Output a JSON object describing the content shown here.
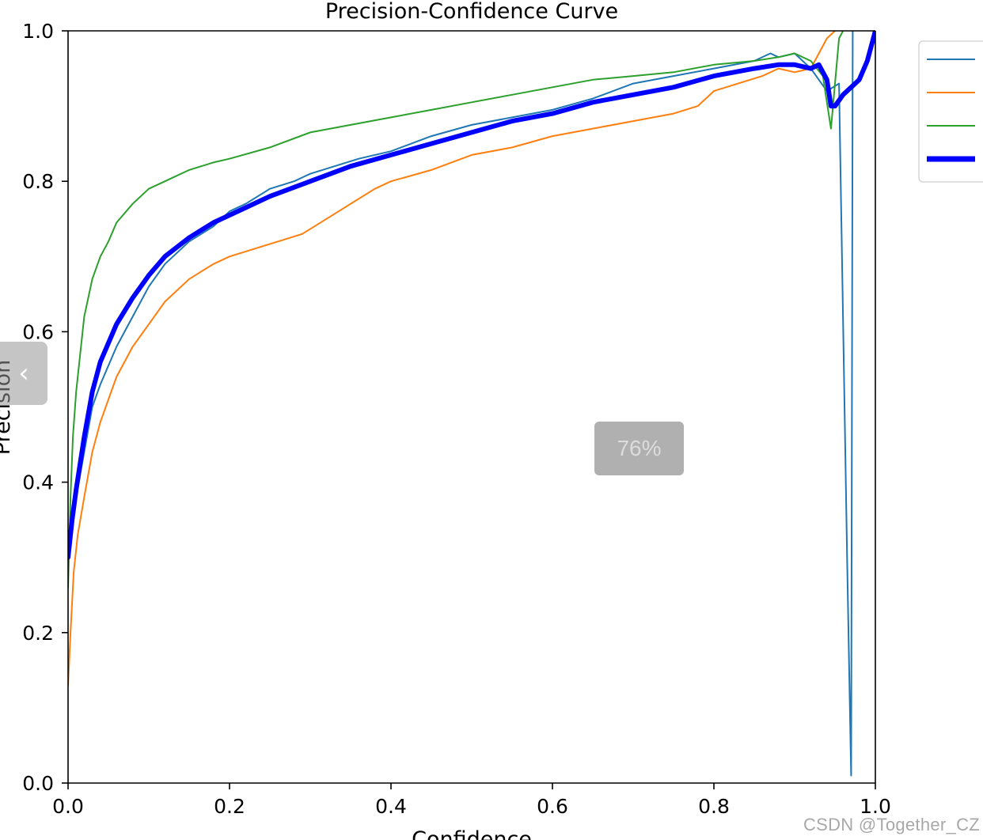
{
  "chart_data": {
    "type": "line",
    "title": "Precision-Confidence Curve",
    "xlabel": "Confidence",
    "ylabel": "Precision",
    "xlim": [
      0,
      1
    ],
    "ylim": [
      0,
      1
    ],
    "xticks": [
      "0.0",
      "0.2",
      "0.4",
      "0.6",
      "0.8",
      "1.0"
    ],
    "yticks": [
      "0.0",
      "0.2",
      "0.4",
      "0.6",
      "0.8",
      "1.0"
    ],
    "grid": false,
    "legend_position": "outside-right",
    "series": [
      {
        "color": "#1f77b4",
        "line_width": "thin",
        "points": [
          [
            0.0,
            0.3
          ],
          [
            0.005,
            0.34
          ],
          [
            0.01,
            0.38
          ],
          [
            0.02,
            0.44
          ],
          [
            0.03,
            0.5
          ],
          [
            0.04,
            0.53
          ],
          [
            0.06,
            0.58
          ],
          [
            0.08,
            0.62
          ],
          [
            0.1,
            0.66
          ],
          [
            0.12,
            0.69
          ],
          [
            0.15,
            0.72
          ],
          [
            0.18,
            0.74
          ],
          [
            0.2,
            0.76
          ],
          [
            0.22,
            0.77
          ],
          [
            0.25,
            0.79
          ],
          [
            0.28,
            0.8
          ],
          [
            0.3,
            0.81
          ],
          [
            0.33,
            0.82
          ],
          [
            0.36,
            0.83
          ],
          [
            0.4,
            0.84
          ],
          [
            0.45,
            0.86
          ],
          [
            0.5,
            0.875
          ],
          [
            0.55,
            0.885
          ],
          [
            0.6,
            0.895
          ],
          [
            0.65,
            0.91
          ],
          [
            0.7,
            0.93
          ],
          [
            0.75,
            0.94
          ],
          [
            0.8,
            0.95
          ],
          [
            0.85,
            0.96
          ],
          [
            0.87,
            0.97
          ],
          [
            0.88,
            0.965
          ],
          [
            0.9,
            0.97
          ],
          [
            0.92,
            0.95
          ],
          [
            0.94,
            0.92
          ],
          [
            0.955,
            0.93
          ],
          [
            0.965,
            0.3
          ],
          [
            0.97,
            0.01
          ],
          [
            0.972,
            1.0
          ]
        ]
      },
      {
        "color": "#ff7f0e",
        "line_width": "thin",
        "points": [
          [
            0.0,
            0.13
          ],
          [
            0.003,
            0.2
          ],
          [
            0.007,
            0.28
          ],
          [
            0.012,
            0.33
          ],
          [
            0.02,
            0.38
          ],
          [
            0.03,
            0.44
          ],
          [
            0.04,
            0.48
          ],
          [
            0.06,
            0.54
          ],
          [
            0.08,
            0.58
          ],
          [
            0.1,
            0.61
          ],
          [
            0.12,
            0.64
          ],
          [
            0.15,
            0.67
          ],
          [
            0.18,
            0.69
          ],
          [
            0.2,
            0.7
          ],
          [
            0.23,
            0.71
          ],
          [
            0.26,
            0.72
          ],
          [
            0.29,
            0.73
          ],
          [
            0.32,
            0.75
          ],
          [
            0.35,
            0.77
          ],
          [
            0.38,
            0.79
          ],
          [
            0.4,
            0.8
          ],
          [
            0.45,
            0.815
          ],
          [
            0.5,
            0.835
          ],
          [
            0.55,
            0.845
          ],
          [
            0.6,
            0.86
          ],
          [
            0.65,
            0.87
          ],
          [
            0.7,
            0.88
          ],
          [
            0.75,
            0.89
          ],
          [
            0.78,
            0.9
          ],
          [
            0.8,
            0.92
          ],
          [
            0.83,
            0.93
          ],
          [
            0.86,
            0.94
          ],
          [
            0.88,
            0.95
          ],
          [
            0.9,
            0.945
          ],
          [
            0.92,
            0.95
          ],
          [
            0.93,
            0.97
          ],
          [
            0.94,
            0.99
          ],
          [
            0.95,
            1.0
          ]
        ]
      },
      {
        "color": "#2ca02c",
        "line_width": "thin",
        "points": [
          [
            0.0,
            0.26
          ],
          [
            0.003,
            0.38
          ],
          [
            0.006,
            0.46
          ],
          [
            0.01,
            0.52
          ],
          [
            0.015,
            0.57
          ],
          [
            0.02,
            0.62
          ],
          [
            0.03,
            0.67
          ],
          [
            0.04,
            0.7
          ],
          [
            0.05,
            0.72
          ],
          [
            0.06,
            0.745
          ],
          [
            0.08,
            0.77
          ],
          [
            0.1,
            0.79
          ],
          [
            0.12,
            0.8
          ],
          [
            0.15,
            0.815
          ],
          [
            0.18,
            0.825
          ],
          [
            0.2,
            0.83
          ],
          [
            0.25,
            0.845
          ],
          [
            0.3,
            0.865
          ],
          [
            0.35,
            0.875
          ],
          [
            0.4,
            0.885
          ],
          [
            0.45,
            0.895
          ],
          [
            0.5,
            0.905
          ],
          [
            0.55,
            0.915
          ],
          [
            0.6,
            0.925
          ],
          [
            0.65,
            0.935
          ],
          [
            0.7,
            0.94
          ],
          [
            0.75,
            0.945
          ],
          [
            0.8,
            0.955
          ],
          [
            0.85,
            0.96
          ],
          [
            0.88,
            0.965
          ],
          [
            0.9,
            0.97
          ],
          [
            0.92,
            0.96
          ],
          [
            0.935,
            0.94
          ],
          [
            0.945,
            0.87
          ],
          [
            0.95,
            0.93
          ],
          [
            0.955,
            0.99
          ],
          [
            0.96,
            1.0
          ]
        ]
      },
      {
        "color": "#0000ff",
        "line_width": "thick",
        "points": [
          [
            0.0,
            0.3
          ],
          [
            0.005,
            0.35
          ],
          [
            0.01,
            0.39
          ],
          [
            0.02,
            0.46
          ],
          [
            0.03,
            0.52
          ],
          [
            0.04,
            0.56
          ],
          [
            0.06,
            0.61
          ],
          [
            0.08,
            0.645
          ],
          [
            0.1,
            0.675
          ],
          [
            0.12,
            0.7
          ],
          [
            0.15,
            0.725
          ],
          [
            0.18,
            0.745
          ],
          [
            0.2,
            0.755
          ],
          [
            0.22,
            0.765
          ],
          [
            0.25,
            0.78
          ],
          [
            0.3,
            0.8
          ],
          [
            0.35,
            0.82
          ],
          [
            0.4,
            0.835
          ],
          [
            0.45,
            0.85
          ],
          [
            0.5,
            0.865
          ],
          [
            0.55,
            0.88
          ],
          [
            0.6,
            0.89
          ],
          [
            0.65,
            0.905
          ],
          [
            0.7,
            0.915
          ],
          [
            0.75,
            0.925
          ],
          [
            0.8,
            0.94
          ],
          [
            0.85,
            0.95
          ],
          [
            0.88,
            0.955
          ],
          [
            0.9,
            0.955
          ],
          [
            0.92,
            0.95
          ],
          [
            0.93,
            0.955
          ],
          [
            0.94,
            0.935
          ],
          [
            0.945,
            0.9
          ],
          [
            0.95,
            0.9
          ],
          [
            0.96,
            0.915
          ],
          [
            0.97,
            0.925
          ],
          [
            0.98,
            0.935
          ],
          [
            0.99,
            0.96
          ],
          [
            1.0,
            1.0
          ]
        ]
      }
    ]
  },
  "ui": {
    "zoom_level": "76%",
    "watermark": "CSDN @Together_CZ",
    "prev_icon": "‹"
  }
}
